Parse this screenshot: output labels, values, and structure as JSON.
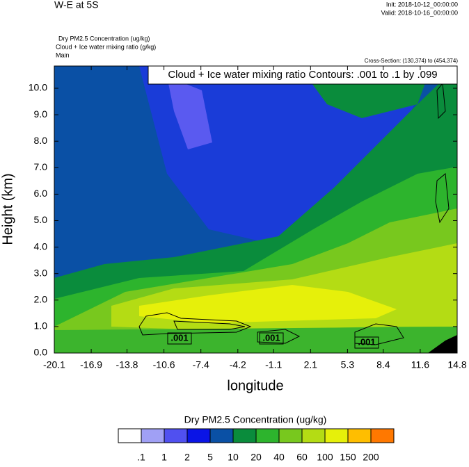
{
  "chart_data": {
    "type": "contour",
    "title": "W-E at 5S",
    "init": "Init: 2018-10-12_00:00:00",
    "valid": "Valid: 2018-10-16_00:00:00",
    "fields": [
      "Dry PM2.5 Concentration   (ug/kg)",
      "Cloud + Ice water mixing ratio   (g/kg)",
      "Main"
    ],
    "cross_section": "Cross-Section: (130,374) to (454,374)",
    "annotation": "Cloud + Ice water mixing ratio Contours: .001 to .1 by .099",
    "contour_labels": [
      ".001",
      ".001",
      ".001"
    ],
    "x_label": "longitude",
    "y_label": "Height (km)",
    "xlim": [
      -20.1,
      14.8
    ],
    "xticks": [
      -20.1,
      -16.9,
      -13.8,
      -10.6,
      -7.4,
      -4.2,
      -1.1,
      2.1,
      5.3,
      8.4,
      11.6,
      14.8
    ],
    "ylim": [
      0,
      10.84
    ],
    "yticks": [
      {
        "value": 0,
        "label": "0.0"
      },
      {
        "value": 1,
        "label": "1.0"
      },
      {
        "value": 2,
        "label": "2.0"
      },
      {
        "value": 3,
        "label": "3.0"
      },
      {
        "value": 4,
        "label": "4.0"
      },
      {
        "value": 5,
        "label": "5.0"
      },
      {
        "value": 6,
        "label": "6.0"
      },
      {
        "value": 7,
        "label": "7.0"
      },
      {
        "value": 8,
        "label": "8.0"
      },
      {
        "value": 9,
        "label": "9.0"
      },
      {
        "value": 10,
        "label": "10.0"
      }
    ],
    "colorbar": {
      "title": "Dry PM2.5 Concentration  (ug/kg)",
      "levels": [
        {
          "value": 0.1,
          "label": ".1"
        },
        1,
        2,
        5,
        10,
        20,
        40,
        60,
        100,
        150,
        200
      ],
      "colors": [
        "#ffffff",
        "#a0a0f5",
        "#5050f0",
        "#0a14e6",
        "#0a50a5",
        "#0a8c3c",
        "#2db42d",
        "#78c81e",
        "#b4dc14",
        "#e6f00a",
        "#ffbe00",
        "#ff7800",
        "#ff0a0a"
      ]
    }
  }
}
